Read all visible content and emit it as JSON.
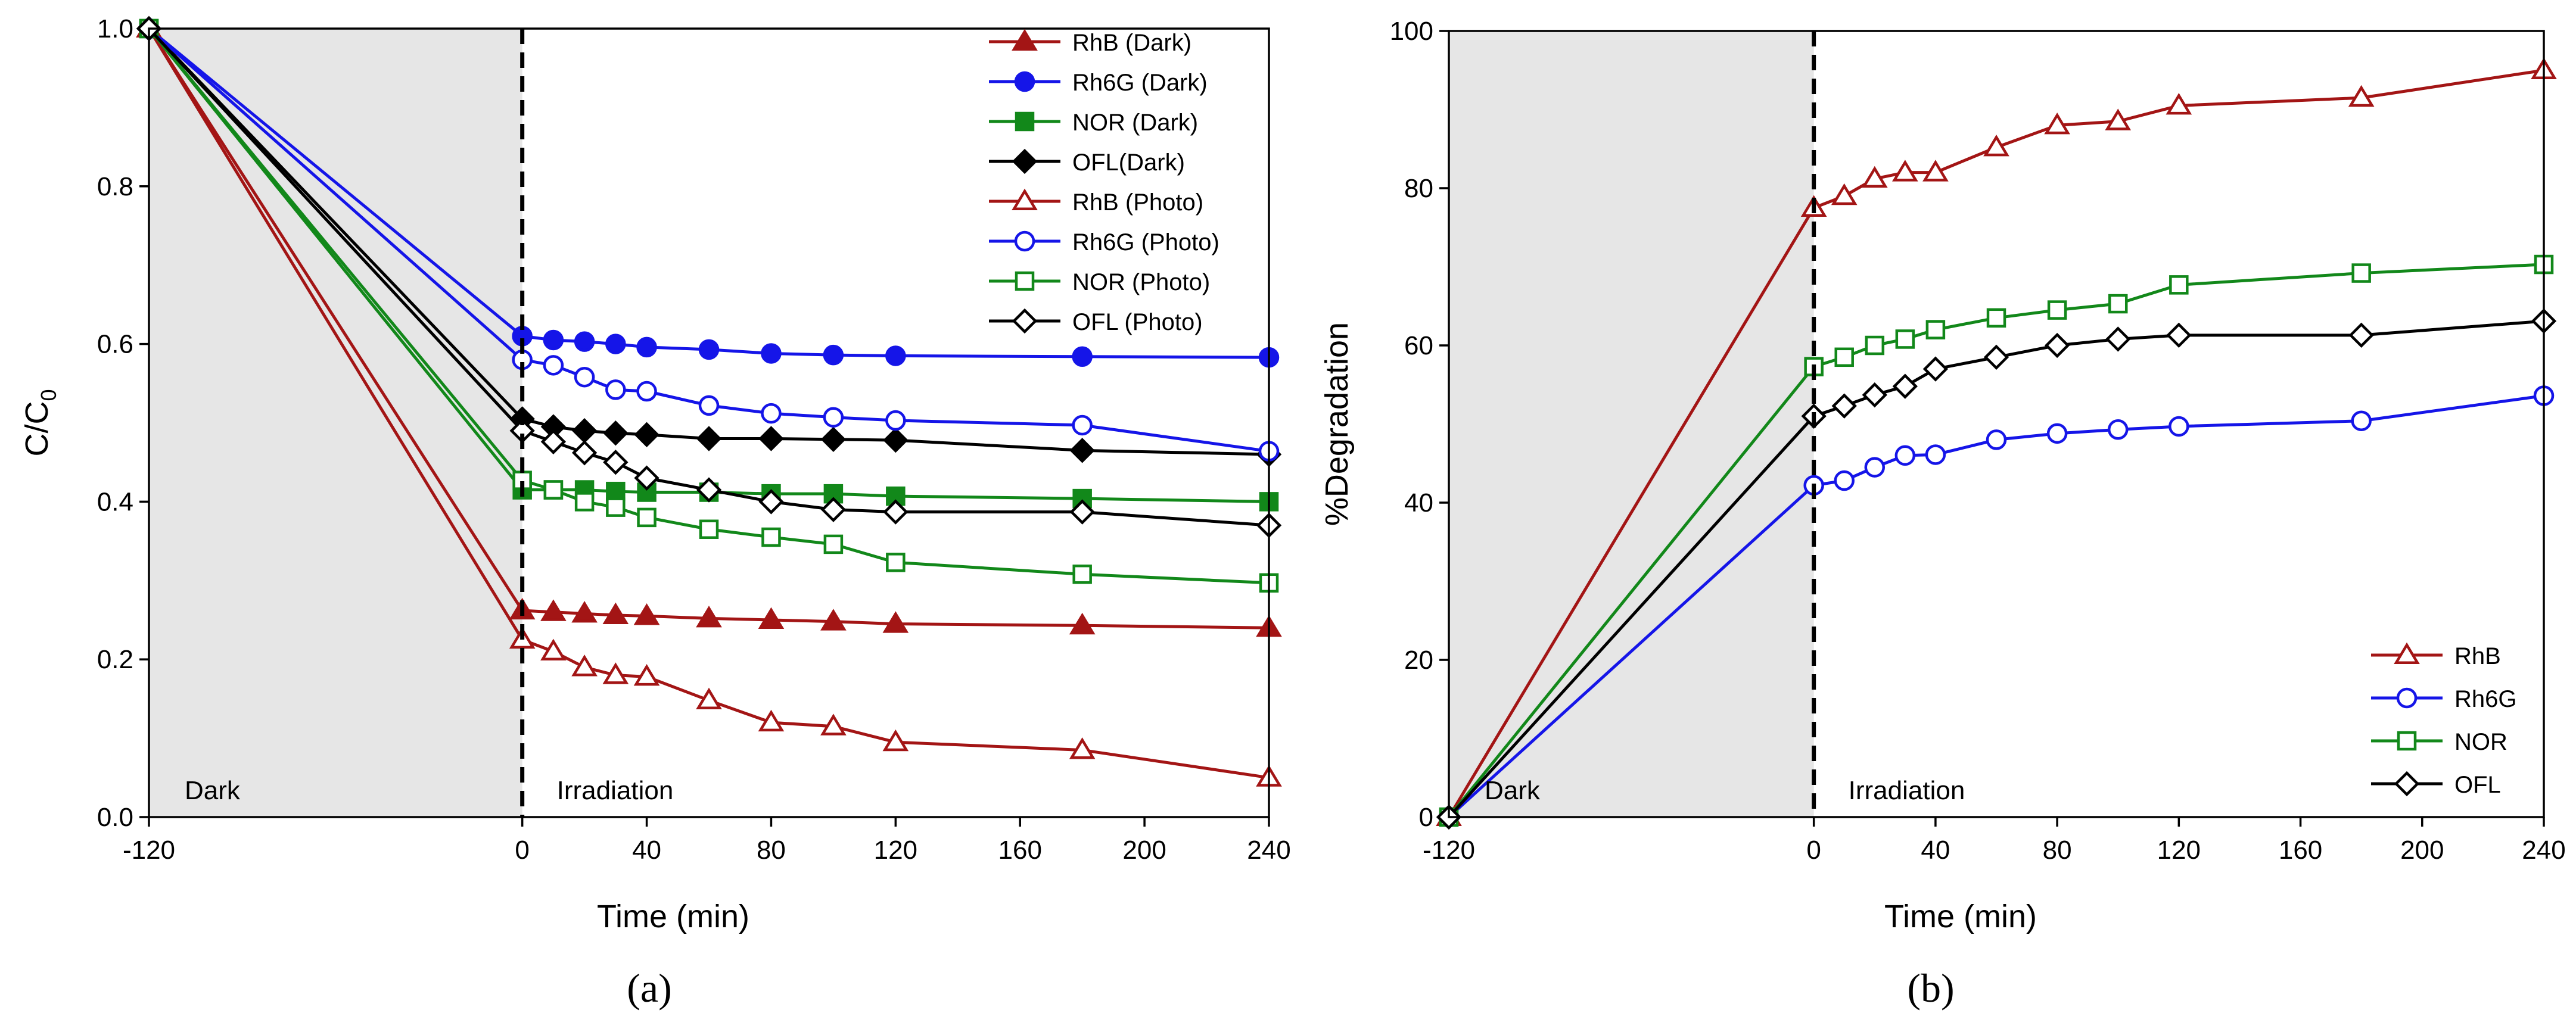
{
  "chart_data": [
    {
      "type": "line",
      "panel_label": "(a)",
      "xlabel": "Time (min)",
      "ylabel": "C/C",
      "ylabel_sub": "0",
      "xlim": [
        -120,
        240
      ],
      "ylim": [
        0,
        1.0
      ],
      "x_ticks": [
        -120,
        0,
        40,
        80,
        120,
        160,
        200,
        240
      ],
      "x_tick_labels": [
        "-120",
        "0",
        "40",
        "80",
        "120",
        "160",
        "200",
        "240"
      ],
      "y_ticks": [
        0,
        0.2,
        0.4,
        0.6,
        0.8,
        1.0
      ],
      "y_tick_labels": [
        "0.0",
        "0.2",
        "0.4",
        "0.6",
        "0.8",
        "1.0"
      ],
      "dark_region": [
        -120,
        0
      ],
      "dark_label": "Dark",
      "irradiation_label": "Irradiation",
      "legend_position": "top-right",
      "x": [
        -120,
        0,
        10,
        20,
        30,
        40,
        60,
        80,
        100,
        120,
        180,
        240
      ],
      "series": [
        {
          "name": "RhB (Dark)",
          "color": "#a31515",
          "marker": "triangle",
          "filled": true,
          "values": [
            1.0,
            0.262,
            0.26,
            0.258,
            0.256,
            0.255,
            0.252,
            0.25,
            0.248,
            0.245,
            0.243,
            0.24
          ]
        },
        {
          "name": "Rh6G (Dark)",
          "color": "#1515e8",
          "marker": "circle",
          "filled": true,
          "values": [
            1.0,
            0.61,
            0.605,
            0.603,
            0.6,
            0.596,
            0.593,
            0.588,
            0.586,
            0.585,
            0.584,
            0.583
          ]
        },
        {
          "name": "NOR (Dark)",
          "color": "#12881a",
          "marker": "square",
          "filled": true,
          "values": [
            1.0,
            0.415,
            0.415,
            0.415,
            0.413,
            0.412,
            0.412,
            0.41,
            0.41,
            0.407,
            0.404,
            0.4
          ]
        },
        {
          "name": "OFL(Dark)",
          "color": "#000000",
          "marker": "diamond",
          "filled": true,
          "values": [
            1.0,
            0.505,
            0.495,
            0.49,
            0.487,
            0.485,
            0.48,
            0.48,
            0.479,
            0.478,
            0.465,
            0.46
          ]
        },
        {
          "name": "RhB (Photo)",
          "color": "#a31515",
          "marker": "triangle",
          "filled": false,
          "values": [
            1.0,
            0.225,
            0.21,
            0.19,
            0.18,
            0.178,
            0.148,
            0.12,
            0.115,
            0.095,
            0.085,
            0.05
          ]
        },
        {
          "name": "Rh6G (Photo)",
          "color": "#1515e8",
          "marker": "circle",
          "filled": false,
          "values": [
            1.0,
            0.58,
            0.573,
            0.558,
            0.542,
            0.54,
            0.522,
            0.512,
            0.507,
            0.503,
            0.497,
            0.464
          ]
        },
        {
          "name": "NOR (Photo)",
          "color": "#12881a",
          "marker": "square",
          "filled": false,
          "values": [
            1.0,
            0.427,
            0.415,
            0.4,
            0.393,
            0.38,
            0.365,
            0.355,
            0.346,
            0.323,
            0.308,
            0.297
          ]
        },
        {
          "name": "OFL (Photo)",
          "color": "#000000",
          "marker": "diamond",
          "filled": false,
          "values": [
            1.0,
            0.49,
            0.476,
            0.462,
            0.45,
            0.43,
            0.415,
            0.4,
            0.39,
            0.387,
            0.387,
            0.37
          ]
        }
      ]
    },
    {
      "type": "line",
      "panel_label": "(b)",
      "xlabel": "Time (min)",
      "ylabel": "%Degradation",
      "ylabel_sub": "",
      "xlim": [
        -120,
        240
      ],
      "ylim": [
        0,
        100
      ],
      "x_ticks": [
        -120,
        0,
        40,
        80,
        120,
        160,
        200,
        240
      ],
      "x_tick_labels": [
        "-120",
        "0",
        "40",
        "80",
        "120",
        "160",
        "200",
        "240"
      ],
      "y_ticks": [
        0,
        20,
        40,
        60,
        80,
        100
      ],
      "y_tick_labels": [
        "0",
        "20",
        "40",
        "60",
        "80",
        "100"
      ],
      "dark_region": [
        -120,
        0
      ],
      "dark_label": "Dark",
      "irradiation_label": "Irradiation",
      "legend_position": "bottom-right",
      "x": [
        -120,
        0,
        10,
        20,
        30,
        40,
        60,
        80,
        100,
        120,
        180,
        240
      ],
      "series": [
        {
          "name": "RhB",
          "color": "#a31515",
          "marker": "triangle",
          "filled": false,
          "values": [
            0,
            77.5,
            79,
            81.2,
            82,
            82,
            85.2,
            88,
            88.5,
            90.5,
            91.5,
            95
          ]
        },
        {
          "name": "Rh6G",
          "color": "#1515e8",
          "marker": "circle",
          "filled": false,
          "values": [
            0,
            42.2,
            42.8,
            44.5,
            46,
            46.1,
            48,
            48.8,
            49.3,
            49.7,
            50.4,
            53.6
          ]
        },
        {
          "name": "NOR",
          "color": "#12881a",
          "marker": "square",
          "filled": false,
          "values": [
            0,
            57.3,
            58.5,
            60,
            60.8,
            62,
            63.5,
            64.5,
            65.3,
            67.7,
            69.2,
            70.3
          ]
        },
        {
          "name": "OFL",
          "color": "#000000",
          "marker": "diamond",
          "filled": false,
          "values": [
            0,
            51,
            52.3,
            53.7,
            54.8,
            57,
            58.5,
            60,
            60.8,
            61.3,
            61.3,
            63.1
          ]
        }
      ]
    }
  ]
}
